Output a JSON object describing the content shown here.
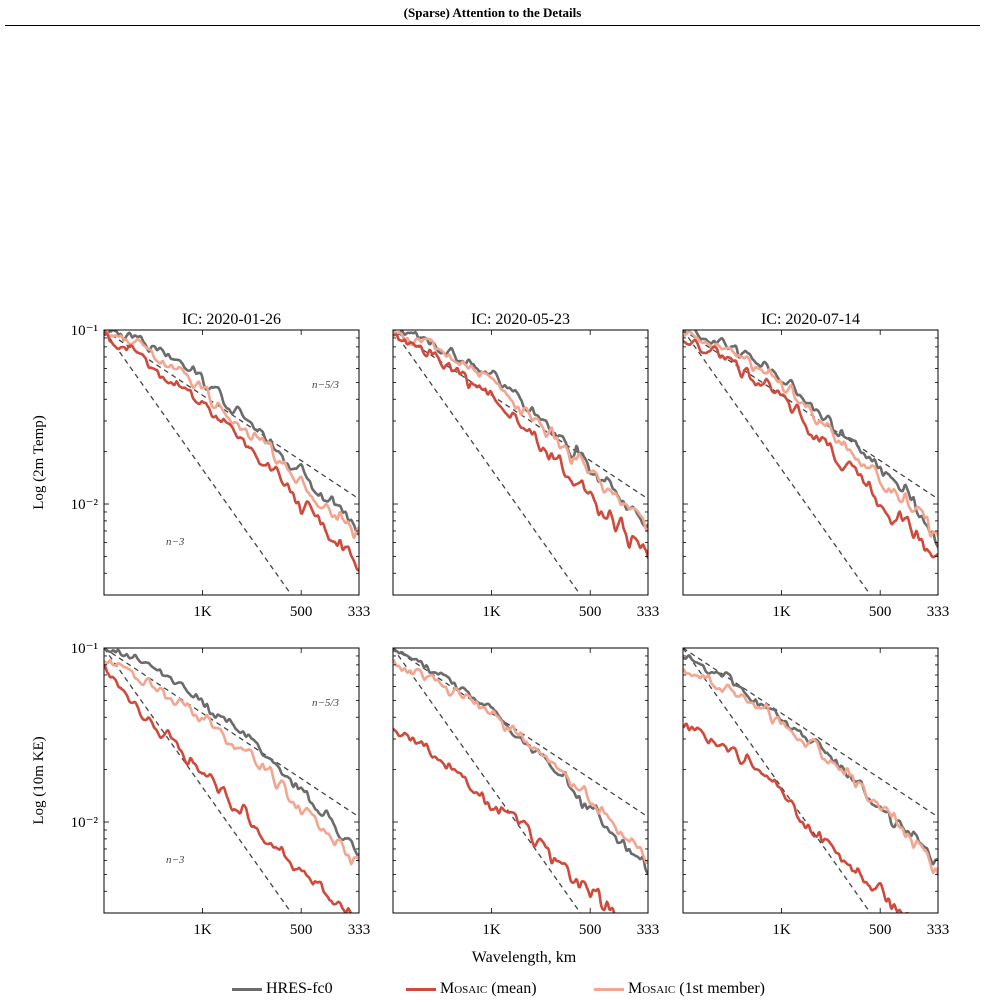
{
  "header": {
    "title": "(Sparse) Attention to the Details"
  },
  "colors": {
    "hres": "#6b6b6b",
    "mean": "#cd4a3c",
    "member": "#f2a58f",
    "ref": "#444444"
  },
  "legend": [
    {
      "key": "hres",
      "label_main": "HRES-fc0",
      "label_suffix": ""
    },
    {
      "key": "mean",
      "label_main": "Mosaic",
      "label_suffix": " (mean)"
    },
    {
      "key": "member",
      "label_main": "Mosaic",
      "label_suffix": " (1st member)"
    }
  ],
  "chart_data": {
    "type": "line",
    "xlabel": "Wavelength, km",
    "x_scale": "log",
    "y_scale": "log",
    "x_range_km": [
      2000,
      333
    ],
    "x_ticks": [
      {
        "value": 1000,
        "label": "1K"
      },
      {
        "value": 500,
        "label": "500"
      },
      {
        "value": 333,
        "label": "333"
      }
    ],
    "y_ticks_labeled": [
      {
        "value": 0.1,
        "label": "10⁻¹"
      },
      {
        "value": 0.01,
        "label": "10⁻²"
      }
    ],
    "rows": [
      {
        "ylabel": "Log (2m Temp)",
        "ylim": [
          0.003,
          0.1
        ],
        "ref_labels": {
          "n53": "n−5/3",
          "n3": "n−3"
        }
      },
      {
        "ylabel": "Log (10m KE)",
        "ylim": [
          0.003,
          0.1
        ],
        "ref_labels": {
          "n53": "n−5/3",
          "n3": "n−3"
        }
      }
    ],
    "columns": [
      {
        "title": "IC: 2020-01-26"
      },
      {
        "title": "IC: 2020-05-23"
      },
      {
        "title": "IC: 2020-07-14"
      }
    ],
    "panels": [
      {
        "row": 0,
        "col": 0,
        "reference_lines": [
          {
            "name": "n^-5/3",
            "points": [
              [
                2000,
                0.1
              ],
              [
                333,
                0.0107
              ]
            ]
          },
          {
            "name": "n^-3",
            "points": [
              [
                2000,
                0.1
              ],
              [
                500,
                0.0025
              ]
            ]
          }
        ],
        "series": [
          {
            "key": "hres",
            "points": [
              [
                2000,
                0.1
              ],
              [
                1500,
                0.085
              ],
              [
                1000,
                0.052
              ],
              [
                800,
                0.034
              ],
              [
                600,
                0.021
              ],
              [
                500,
                0.015
              ],
              [
                400,
                0.0105
              ],
              [
                333,
                0.0075
              ]
            ]
          },
          {
            "key": "mean",
            "points": [
              [
                2000,
                0.09
              ],
              [
                1500,
                0.07
              ],
              [
                1000,
                0.038
              ],
              [
                800,
                0.024
              ],
              [
                600,
                0.015
              ],
              [
                500,
                0.01
              ],
              [
                400,
                0.0065
              ],
              [
                333,
                0.004
              ]
            ]
          },
          {
            "key": "member",
            "points": [
              [
                2000,
                0.098
              ],
              [
                1500,
                0.08
              ],
              [
                1000,
                0.045
              ],
              [
                800,
                0.03
              ],
              [
                600,
                0.019
              ],
              [
                500,
                0.013
              ],
              [
                400,
                0.009
              ],
              [
                333,
                0.0065
              ]
            ]
          }
        ]
      },
      {
        "row": 0,
        "col": 1,
        "reference_lines": [
          {
            "name": "n^-5/3",
            "points": [
              [
                2000,
                0.1
              ],
              [
                333,
                0.0107
              ]
            ]
          },
          {
            "name": "n^-3",
            "points": [
              [
                2000,
                0.1
              ],
              [
                500,
                0.0025
              ]
            ]
          }
        ],
        "series": [
          {
            "key": "hres",
            "points": [
              [
                2000,
                0.1
              ],
              [
                1500,
                0.085
              ],
              [
                1000,
                0.055
              ],
              [
                800,
                0.038
              ],
              [
                600,
                0.023
              ],
              [
                500,
                0.016
              ],
              [
                400,
                0.011
              ],
              [
                333,
                0.0068
              ]
            ]
          },
          {
            "key": "mean",
            "points": [
              [
                2000,
                0.09
              ],
              [
                1500,
                0.07
              ],
              [
                1000,
                0.042
              ],
              [
                800,
                0.028
              ],
              [
                600,
                0.016
              ],
              [
                500,
                0.011
              ],
              [
                400,
                0.0075
              ],
              [
                333,
                0.0048
              ]
            ]
          },
          {
            "key": "member",
            "points": [
              [
                2000,
                0.097
              ],
              [
                1500,
                0.08
              ],
              [
                1000,
                0.05
              ],
              [
                800,
                0.034
              ],
              [
                600,
                0.021
              ],
              [
                500,
                0.015
              ],
              [
                400,
                0.0105
              ],
              [
                333,
                0.0072
              ]
            ]
          }
        ]
      },
      {
        "row": 0,
        "col": 2,
        "reference_lines": [
          {
            "name": "n^-5/3",
            "points": [
              [
                2000,
                0.1
              ],
              [
                333,
                0.0107
              ]
            ]
          },
          {
            "name": "n^-3",
            "points": [
              [
                2000,
                0.1
              ],
              [
                500,
                0.0025
              ]
            ]
          }
        ],
        "series": [
          {
            "key": "hres",
            "points": [
              [
                2000,
                0.1
              ],
              [
                1500,
                0.085
              ],
              [
                1000,
                0.055
              ],
              [
                800,
                0.035
              ],
              [
                600,
                0.021
              ],
              [
                500,
                0.015
              ],
              [
                400,
                0.0105
              ],
              [
                333,
                0.006
              ]
            ]
          },
          {
            "key": "mean",
            "points": [
              [
                2000,
                0.09
              ],
              [
                1500,
                0.07
              ],
              [
                1000,
                0.042
              ],
              [
                800,
                0.026
              ],
              [
                600,
                0.015
              ],
              [
                500,
                0.01
              ],
              [
                400,
                0.007
              ],
              [
                333,
                0.005
              ]
            ]
          },
          {
            "key": "member",
            "points": [
              [
                2000,
                0.097
              ],
              [
                1500,
                0.08
              ],
              [
                1000,
                0.05
              ],
              [
                800,
                0.032
              ],
              [
                600,
                0.02
              ],
              [
                500,
                0.014
              ],
              [
                400,
                0.0095
              ],
              [
                333,
                0.0065
              ]
            ]
          }
        ]
      },
      {
        "row": 1,
        "col": 0,
        "reference_lines": [
          {
            "name": "n^-5/3",
            "points": [
              [
                2000,
                0.1
              ],
              [
                333,
                0.0107
              ]
            ]
          },
          {
            "name": "n^-3",
            "points": [
              [
                2000,
                0.1
              ],
              [
                500,
                0.0025
              ]
            ]
          }
        ],
        "series": [
          {
            "key": "hres",
            "points": [
              [
                2000,
                0.1
              ],
              [
                1500,
                0.085
              ],
              [
                1000,
                0.05
              ],
              [
                800,
                0.035
              ],
              [
                600,
                0.022
              ],
              [
                500,
                0.015
              ],
              [
                400,
                0.0095
              ],
              [
                333,
                0.0062
              ]
            ]
          },
          {
            "key": "mean",
            "points": [
              [
                2000,
                0.08
              ],
              [
                1500,
                0.04
              ],
              [
                1000,
                0.02
              ],
              [
                800,
                0.012
              ],
              [
                600,
                0.0075
              ],
              [
                500,
                0.005
              ],
              [
                400,
                0.0035
              ],
              [
                333,
                0.0025
              ]
            ]
          },
          {
            "key": "member",
            "points": [
              [
                2000,
                0.085
              ],
              [
                1500,
                0.065
              ],
              [
                1000,
                0.04
              ],
              [
                800,
                0.028
              ],
              [
                600,
                0.018
              ],
              [
                500,
                0.012
              ],
              [
                400,
                0.008
              ],
              [
                333,
                0.0058
              ]
            ]
          }
        ]
      },
      {
        "row": 1,
        "col": 1,
        "reference_lines": [
          {
            "name": "n^-5/3",
            "points": [
              [
                2000,
                0.1
              ],
              [
                333,
                0.0107
              ]
            ]
          },
          {
            "name": "n^-3",
            "points": [
              [
                2000,
                0.1
              ],
              [
                500,
                0.0025
              ]
            ]
          }
        ],
        "series": [
          {
            "key": "hres",
            "points": [
              [
                2000,
                0.1
              ],
              [
                1500,
                0.075
              ],
              [
                1000,
                0.045
              ],
              [
                800,
                0.03
              ],
              [
                600,
                0.018
              ],
              [
                500,
                0.012
              ],
              [
                400,
                0.008
              ],
              [
                333,
                0.0052
              ]
            ]
          },
          {
            "key": "mean",
            "points": [
              [
                2000,
                0.035
              ],
              [
                1500,
                0.025
              ],
              [
                1000,
                0.013
              ],
              [
                800,
                0.0095
              ],
              [
                600,
                0.0055
              ],
              [
                500,
                0.0038
              ],
              [
                400,
                0.0028
              ]
            ]
          },
          {
            "key": "member",
            "points": [
              [
                2000,
                0.085
              ],
              [
                1500,
                0.065
              ],
              [
                1000,
                0.042
              ],
              [
                800,
                0.03
              ],
              [
                600,
                0.019
              ],
              [
                500,
                0.013
              ],
              [
                400,
                0.0085
              ],
              [
                333,
                0.006
              ]
            ]
          }
        ]
      },
      {
        "row": 1,
        "col": 2,
        "reference_lines": [
          {
            "name": "n^-5/3",
            "points": [
              [
                2000,
                0.1
              ],
              [
                333,
                0.0107
              ]
            ]
          },
          {
            "name": "n^-3",
            "points": [
              [
                2000,
                0.1
              ],
              [
                500,
                0.0025
              ]
            ]
          }
        ],
        "series": [
          {
            "key": "hres",
            "points": [
              [
                2000,
                0.09
              ],
              [
                1500,
                0.07
              ],
              [
                1000,
                0.04
              ],
              [
                800,
                0.028
              ],
              [
                600,
                0.018
              ],
              [
                500,
                0.012
              ],
              [
                400,
                0.008
              ],
              [
                333,
                0.0055
              ]
            ]
          },
          {
            "key": "mean",
            "points": [
              [
                2000,
                0.035
              ],
              [
                1500,
                0.028
              ],
              [
                1000,
                0.015
              ],
              [
                800,
                0.009
              ],
              [
                600,
                0.0055
              ],
              [
                500,
                0.0038
              ],
              [
                400,
                0.0028
              ]
            ]
          },
          {
            "key": "member",
            "points": [
              [
                2000,
                0.075
              ],
              [
                1500,
                0.06
              ],
              [
                1000,
                0.038
              ],
              [
                800,
                0.027
              ],
              [
                600,
                0.018
              ],
              [
                500,
                0.012
              ],
              [
                400,
                0.008
              ],
              [
                333,
                0.0055
              ]
            ]
          }
        ]
      }
    ]
  }
}
